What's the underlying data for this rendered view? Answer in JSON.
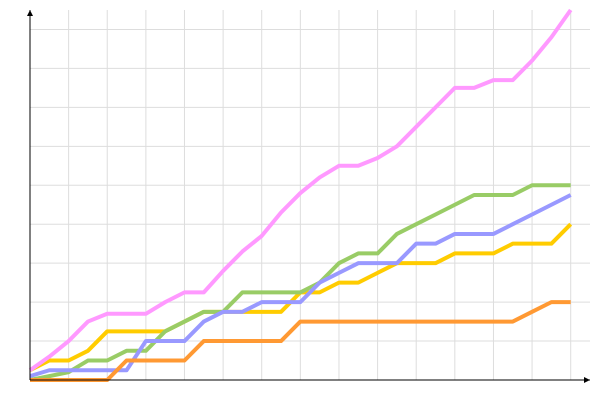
{
  "chart_data": {
    "type": "line",
    "x": [
      0,
      1,
      2,
      3,
      4,
      5,
      6,
      7,
      8,
      9,
      10,
      11,
      12,
      13,
      14,
      15,
      16,
      17,
      18,
      19,
      20,
      21,
      22,
      23,
      24,
      25,
      26,
      27,
      28
    ],
    "series": [
      {
        "color": "#ffcc00",
        "values": [
          2.5,
          5,
          5,
          7.5,
          12.5,
          12.5,
          12.5,
          12.5,
          15,
          17.5,
          17.5,
          17.5,
          17.5,
          17.5,
          22.5,
          22.5,
          25,
          25,
          27.5,
          30,
          30,
          30,
          32.5,
          32.5,
          32.5,
          35,
          35,
          35,
          40
        ]
      },
      {
        "color": "#99cc66",
        "values": [
          0,
          1,
          2,
          5,
          5,
          7.5,
          7.5,
          12.5,
          15,
          17.5,
          17.5,
          22.5,
          22.5,
          22.5,
          22.5,
          25,
          30,
          32.5,
          32.5,
          37.5,
          40,
          42.5,
          45,
          47.5,
          47.5,
          47.5,
          50,
          50,
          50
        ]
      },
      {
        "color": "#9999ff",
        "values": [
          1,
          2.5,
          2.5,
          2.5,
          2.5,
          2.5,
          10,
          10,
          10,
          15,
          17.5,
          17.5,
          20,
          20,
          20,
          25,
          27.5,
          30,
          30,
          30,
          35,
          35,
          37.5,
          37.5,
          37.5,
          40,
          42.5,
          45,
          47.5
        ]
      },
      {
        "color": "#ff9933",
        "values": [
          0,
          0,
          0,
          0,
          0,
          5,
          5,
          5,
          5,
          10,
          10,
          10,
          10,
          10,
          15,
          15,
          15,
          15,
          15,
          15,
          15,
          15,
          15,
          15,
          15,
          15,
          17.5,
          20,
          20
        ]
      },
      {
        "color": "#ff99ff",
        "values": [
          2.5,
          6,
          10,
          15,
          17,
          17,
          17,
          20,
          22.5,
          22.5,
          28,
          33,
          37,
          43,
          48,
          52,
          55,
          55,
          57,
          60,
          65,
          70,
          75,
          75,
          77,
          77,
          82,
          88,
          95
        ]
      }
    ],
    "xlim": [
      0,
      29
    ],
    "ylim": [
      0,
      95
    ],
    "xticks": [
      2,
      4,
      6,
      8,
      10,
      12,
      14,
      16,
      18,
      20,
      22,
      24,
      26,
      28
    ],
    "yticks": [
      10,
      20,
      30,
      40,
      50,
      60,
      70,
      80,
      90
    ],
    "grid": true
  }
}
